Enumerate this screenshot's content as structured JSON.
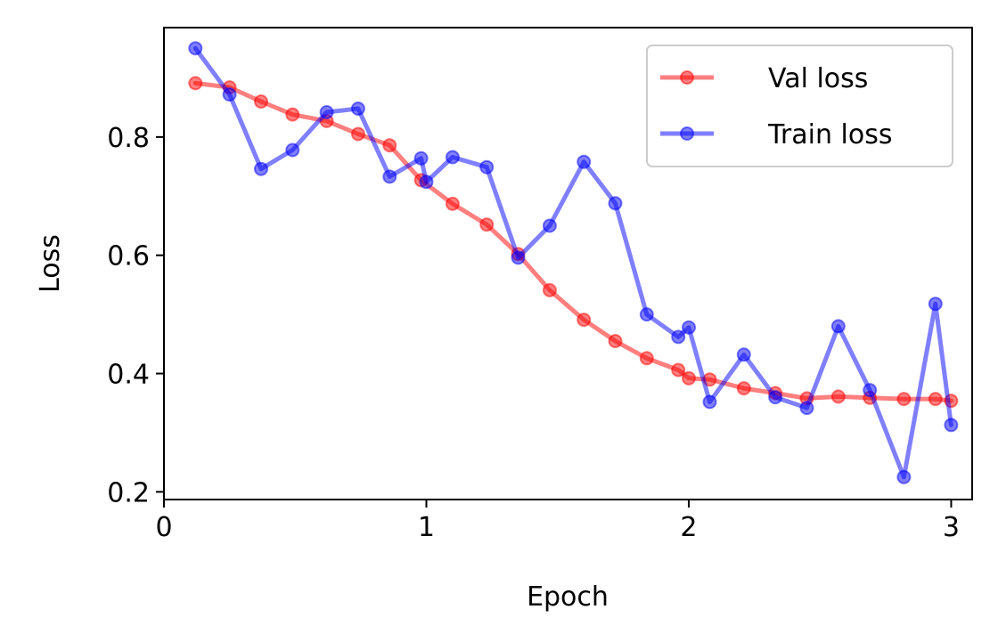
{
  "chart_data": {
    "type": "line",
    "xlabel": "Epoch",
    "ylabel": "Loss",
    "xlim": [
      0,
      3.08
    ],
    "ylim": [
      0.187,
      0.985
    ],
    "xticks": [
      0,
      1,
      2,
      3
    ],
    "yticks": [
      0.2,
      0.4,
      0.6,
      0.8
    ],
    "xtick_labels": [
      "0",
      "1",
      "2",
      "3"
    ],
    "ytick_labels": [
      "0.2",
      "0.4",
      "0.6",
      "0.8"
    ],
    "grid": false,
    "legend_position": "top-right",
    "series": [
      {
        "name": "Val loss",
        "color": "#ff0000",
        "x": [
          0.12,
          0.25,
          0.37,
          0.49,
          0.62,
          0.74,
          0.86,
          0.98,
          1.1,
          1.23,
          1.35,
          1.47,
          1.6,
          1.72,
          1.84,
          1.96,
          2.0,
          2.08,
          2.21,
          2.33,
          2.45,
          2.57,
          2.69,
          2.82,
          2.94,
          3.0
        ],
        "y": [
          0.891,
          0.884,
          0.86,
          0.838,
          0.827,
          0.805,
          0.786,
          0.727,
          0.687,
          0.652,
          0.602,
          0.541,
          0.491,
          0.455,
          0.426,
          0.406,
          0.392,
          0.39,
          0.375,
          0.367,
          0.358,
          0.361,
          0.359,
          0.357,
          0.357,
          0.354
        ]
      },
      {
        "name": "Train loss",
        "color": "#0000ff",
        "x": [
          0.12,
          0.25,
          0.37,
          0.49,
          0.62,
          0.74,
          0.86,
          0.98,
          1.0,
          1.1,
          1.23,
          1.35,
          1.47,
          1.6,
          1.72,
          1.84,
          1.96,
          2.0,
          2.08,
          2.21,
          2.33,
          2.45,
          2.57,
          2.69,
          2.82,
          2.94,
          3.0
        ],
        "y": [
          0.95,
          0.872,
          0.746,
          0.778,
          0.842,
          0.848,
          0.733,
          0.764,
          0.724,
          0.766,
          0.749,
          0.596,
          0.65,
          0.758,
          0.688,
          0.5,
          0.462,
          0.478,
          0.352,
          0.432,
          0.36,
          0.342,
          0.48,
          0.372,
          0.225,
          0.518,
          0.313
        ]
      }
    ]
  }
}
